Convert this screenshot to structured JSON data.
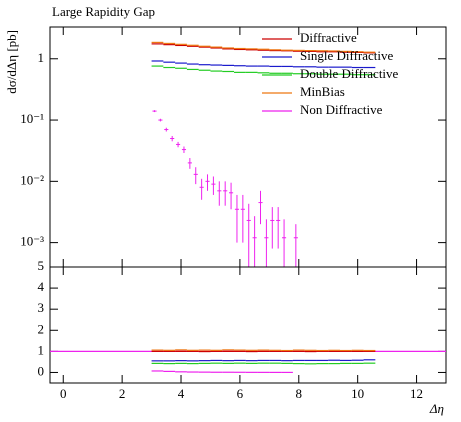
{
  "chart_data": [
    {
      "type": "step",
      "title": "Large Rapidity Gap",
      "y_label": "dσ/dΔη [pb]",
      "log_y": true,
      "legend": "upper right",
      "xlim": [
        -0.45,
        13.0
      ],
      "xticks": [
        0,
        2,
        4,
        6,
        8,
        10,
        12
      ],
      "ylim": [
        0.0004,
        3.3
      ],
      "yticks": [
        {
          "value": 0.001,
          "label": "10⁻³"
        },
        {
          "value": 0.01,
          "label": "10⁻²"
        },
        {
          "value": 0.1,
          "label": "10⁻¹"
        },
        1
      ],
      "x": [
        3.2,
        3.6,
        4.0,
        4.4,
        4.8,
        5.2,
        5.6,
        6.0,
        6.4,
        6.8,
        7.2,
        7.6,
        8.0,
        8.4,
        8.8,
        9.2,
        9.6,
        10.0,
        10.4
      ],
      "series": [
        {
          "name": "Diffractive",
          "color": "#cc0000",
          "values": [
            1.75,
            1.7,
            1.65,
            1.6,
            1.55,
            1.5,
            1.45,
            1.42,
            1.4,
            1.38,
            1.36,
            1.35,
            1.33,
            1.32,
            1.3,
            1.3,
            1.28,
            1.27,
            1.25
          ]
        },
        {
          "name": "Single Diffractive",
          "color": "#1a1acc",
          "values": [
            0.92,
            0.88,
            0.85,
            0.82,
            0.8,
            0.79,
            0.78,
            0.77,
            0.76,
            0.76,
            0.75,
            0.75,
            0.74,
            0.74,
            0.73,
            0.73,
            0.73,
            0.72,
            0.72
          ]
        },
        {
          "name": "Double Diffractive",
          "color": "#22cc22",
          "values": [
            0.76,
            0.72,
            0.7,
            0.67,
            0.65,
            0.63,
            0.62,
            0.6,
            0.6,
            0.59,
            0.58,
            0.58,
            0.57,
            0.57,
            0.56,
            0.56,
            0.56,
            0.55,
            0.55
          ]
        },
        {
          "name": "MinBias",
          "color": "#ee7711",
          "values": [
            1.85,
            1.78,
            1.72,
            1.66,
            1.6,
            1.55,
            1.5,
            1.47,
            1.45,
            1.43,
            1.4,
            1.38,
            1.37,
            1.36,
            1.35,
            1.34,
            1.32,
            1.3,
            1.28
          ]
        },
        {
          "name": "Non Diffractive",
          "color": "#ee22ee",
          "marker": "cross",
          "x": [
            3.1,
            3.3,
            3.5,
            3.7,
            3.9,
            4.1,
            4.3,
            4.5,
            4.7,
            4.9,
            5.1,
            5.3,
            5.5,
            5.7,
            5.9,
            6.1,
            6.3,
            6.5,
            6.7,
            6.9,
            7.1,
            7.3,
            7.5,
            7.9
          ],
          "values": [
            0.14,
            0.1,
            0.07,
            0.05,
            0.04,
            0.033,
            0.02,
            0.013,
            0.008,
            0.01,
            0.009,
            0.007,
            0.007,
            0.0065,
            0.0035,
            0.0035,
            0.0023,
            0.0012,
            0.0045,
            0.0012,
            0.0023,
            0.0023,
            0.0012,
            0.0012
          ],
          "errors": [
            0.005,
            0.005,
            0.005,
            0.005,
            0.004,
            0.004,
            0.004,
            0.004,
            0.003,
            0.003,
            0.003,
            0.003,
            0.003,
            0.003,
            0.0025,
            0.0025,
            0.002,
            0.0015,
            0.0025,
            0.0012,
            0.0015,
            0.0015,
            0.0012,
            0.0008
          ]
        }
      ]
    },
    {
      "type": "step",
      "x_label": "Δη",
      "xlim": [
        -0.45,
        13.0
      ],
      "xticks": [
        0,
        2,
        4,
        6,
        8,
        10,
        12
      ],
      "ylim": [
        -0.5,
        5
      ],
      "yticks": [
        0,
        1,
        2,
        3,
        4,
        5
      ],
      "reference": 1,
      "reference_color": "#ee22ee",
      "x": [
        3.2,
        3.6,
        4.0,
        4.4,
        4.8,
        5.2,
        5.6,
        6.0,
        6.4,
        6.8,
        7.2,
        7.6,
        8.0,
        8.4,
        8.8,
        9.2,
        9.6,
        10.0,
        10.4
      ],
      "series": [
        {
          "color": "#cc0000",
          "values": [
            1.0,
            1.0,
            1.0,
            1.0,
            0.99,
            1.0,
            1.0,
            1.0,
            0.99,
            1.0,
            1.0,
            1.0,
            1.0,
            0.99,
            1.0,
            1.0,
            1.0,
            1.0,
            1.0
          ]
        },
        {
          "color": "#1a1acc",
          "values": [
            0.55,
            0.55,
            0.56,
            0.55,
            0.56,
            0.57,
            0.56,
            0.57,
            0.56,
            0.57,
            0.57,
            0.56,
            0.57,
            0.57,
            0.57,
            0.58,
            0.57,
            0.58,
            0.6
          ]
        },
        {
          "color": "#22cc22",
          "values": [
            0.43,
            0.42,
            0.43,
            0.42,
            0.43,
            0.44,
            0.43,
            0.44,
            0.43,
            0.44,
            0.44,
            0.43,
            0.42,
            0.41,
            0.42,
            0.42,
            0.43,
            0.43,
            0.44
          ]
        },
        {
          "color": "#ee7711",
          "values": [
            1.06,
            1.05,
            1.07,
            1.05,
            1.06,
            1.05,
            1.07,
            1.06,
            1.05,
            1.06,
            1.05,
            1.04,
            1.06,
            1.05,
            1.04,
            1.05,
            1.04,
            1.05,
            1.04
          ]
        },
        {
          "color": "#ee22ee",
          "x": [
            3.2,
            3.6,
            4.0,
            4.4,
            4.8,
            5.2,
            5.6,
            6.0,
            6.4,
            6.8,
            7.2,
            7.6
          ],
          "values": [
            0.07,
            0.05,
            0.03,
            0.02,
            0.015,
            0.01,
            0.01,
            0.008,
            0.005,
            0.004,
            0.003,
            0.002
          ]
        }
      ]
    }
  ]
}
